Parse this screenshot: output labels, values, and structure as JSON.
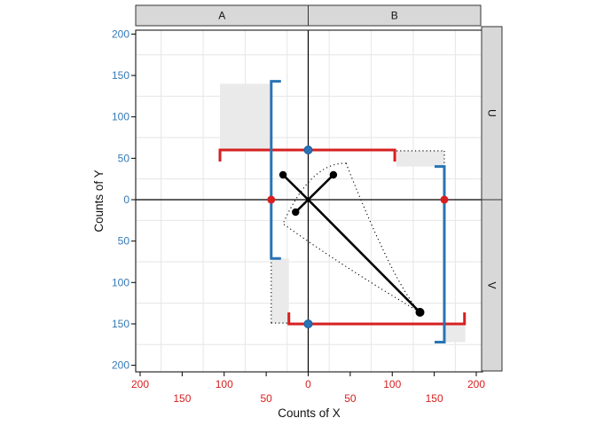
{
  "chart_data": {
    "type": "scatter",
    "title": "",
    "xlabel": "Counts of X",
    "ylabel": "Counts of Y",
    "x_range": [
      -205,
      207
    ],
    "y_range": [
      -208,
      205
    ],
    "x_tick_values": [
      -200,
      -150,
      -100,
      -50,
      0,
      50,
      100,
      150,
      200
    ],
    "x_tick_labels": [
      "200",
      "150",
      "100",
      "50",
      "0",
      "50",
      "100",
      "150",
      "200"
    ],
    "y_tick_values": [
      200,
      150,
      100,
      50,
      0,
      -50,
      -100,
      -150,
      -200
    ],
    "y_tick_labels": [
      "200",
      "150",
      "100",
      "50",
      "0",
      "50",
      "100",
      "150",
      "200"
    ],
    "grid_values": [
      -175,
      -125,
      -75,
      -25,
      25,
      75,
      125,
      175
    ],
    "facets": {
      "top": [
        "A",
        "B"
      ],
      "right": [
        "U",
        "V"
      ]
    },
    "black_points": [
      [
        -30,
        30
      ],
      [
        30,
        30
      ],
      [
        -15,
        -15
      ],
      [
        133,
        -136
      ]
    ],
    "black_segments": [
      [
        [
          0,
          0
        ],
        [
          -30,
          30
        ]
      ],
      [
        [
          0,
          0
        ],
        [
          30,
          30
        ]
      ],
      [
        [
          0,
          0
        ],
        [
          -15,
          -15
        ]
      ],
      [
        [
          0,
          0
        ],
        [
          133,
          -136
        ]
      ]
    ],
    "red_points": [
      [
        -44,
        0
      ],
      [
        162,
        0
      ]
    ],
    "blue_points": [
      [
        0,
        60
      ],
      [
        0,
        -150
      ]
    ],
    "red_brackets": [
      {
        "y": 60,
        "x1": -105,
        "x2": 103,
        "feet": "down"
      },
      {
        "y": -150,
        "x1": -23,
        "x2": 186,
        "feet": "up"
      }
    ],
    "blue_brackets": [
      {
        "x": -44,
        "y1": -71,
        "y2": 143,
        "feet": "right"
      },
      {
        "x": 162,
        "y1": -172,
        "y2": 40,
        "feet": "left"
      }
    ],
    "shaded_rects": [
      {
        "x1": -105,
        "x2": -46,
        "y1": 59,
        "y2": 140,
        "dotted": []
      },
      {
        "x1": 105,
        "x2": 162,
        "y1": 40,
        "y2": 59,
        "dotted": [
          "top",
          "right"
        ]
      },
      {
        "x1": -44,
        "x2": -23,
        "y1": -149,
        "y2": -71,
        "dotted": [
          "left",
          "bottom"
        ]
      },
      {
        "x1": 162,
        "x2": 187,
        "y1": -172,
        "y2": -152,
        "dotted": []
      }
    ],
    "dotted_polygon": {
      "vertices": [
        [
          45,
          44
        ],
        [
          133,
          -136
        ],
        [
          -30,
          -29
        ]
      ],
      "controls": [
        [
          102,
          -102
        ],
        [
          40,
          -80
        ],
        [
          3,
          45
        ]
      ]
    },
    "colors": {
      "red": "#d62020",
      "blue": "#2874b4",
      "blue_dark": "#1b5c9e",
      "x_label": "#d62020",
      "y_label": "#3579b6",
      "grid": "#e6e6e6",
      "shade": "#eaeaea",
      "strip_fill": "#d8d8d8",
      "strip_border": "#333333",
      "panel_border": "#2b2b2b",
      "black": "#000000"
    }
  }
}
